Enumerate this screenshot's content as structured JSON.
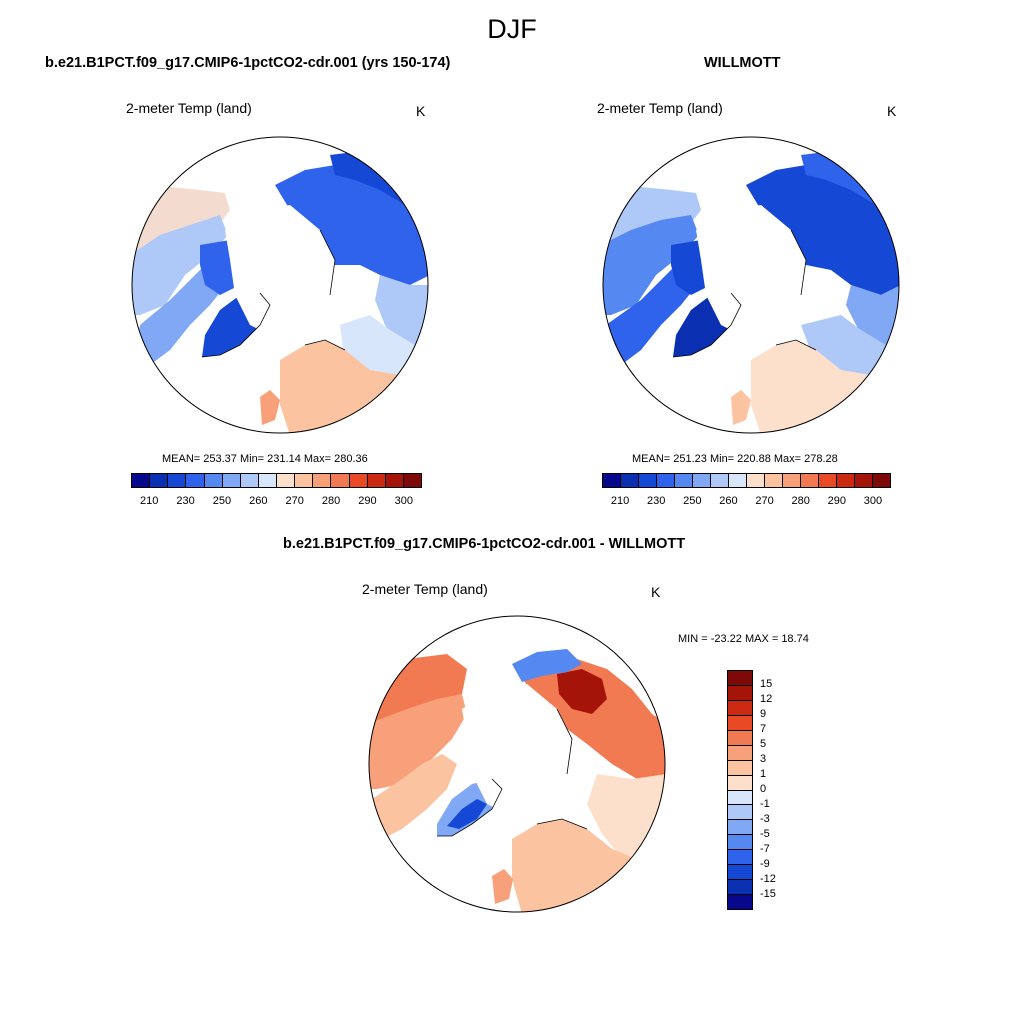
{
  "page_title": "DJF",
  "colors": {
    "abs_scale": [
      "#08088c",
      "#0a2fb0",
      "#1648d6",
      "#2f63ec",
      "#5588f0",
      "#80a8f5",
      "#aec8f8",
      "#d8e6fb",
      "#fde0cc",
      "#fbc3a0",
      "#f7a07a",
      "#f27a52",
      "#e84a26",
      "#cc2a10",
      "#a51409",
      "#7d0a08"
    ],
    "diff_scale": [
      "#08088c",
      "#0a2fb0",
      "#1648d6",
      "#2f63ec",
      "#5588f0",
      "#80a8f5",
      "#aec8f8",
      "#d8e6fb",
      "#fde0cc",
      "#fbc3a0",
      "#f7a07a",
      "#f27a52",
      "#e84a26",
      "#cc2a10",
      "#a51409",
      "#7d0a08"
    ]
  },
  "panels": {
    "model": {
      "title": "b.e21.B1PCT.f09_g17.CMIP6-1pctCO2-cdr.001 (yrs 150-174)",
      "variable": "2-meter Temp (land)",
      "units": "K",
      "stats": "MEAN= 253.37  Min= 231.14  Max= 280.36",
      "ticks": [
        "210",
        "230",
        "250",
        "260",
        "270",
        "280",
        "290",
        "300"
      ]
    },
    "obs": {
      "title": "WILLMOTT",
      "variable": "2-meter Temp (land)",
      "units": "K",
      "stats": "MEAN= 251.23  Min= 220.88  Max= 278.28",
      "ticks": [
        "210",
        "230",
        "250",
        "260",
        "270",
        "280",
        "290",
        "300"
      ]
    },
    "diff": {
      "title": "b.e21.B1PCT.f09_g17.CMIP6-1pctCO2-cdr.001 - WILLMOTT",
      "variable": "2-meter Temp (land)",
      "units": "K",
      "stats": "MIN = -23.22 MAX =  18.74",
      "ticks": [
        "15",
        "12",
        "9",
        "7",
        "5",
        "3",
        "1",
        "0",
        "-1",
        "-3",
        "-5",
        "-7",
        "-9",
        "-12",
        "-15"
      ]
    }
  }
}
